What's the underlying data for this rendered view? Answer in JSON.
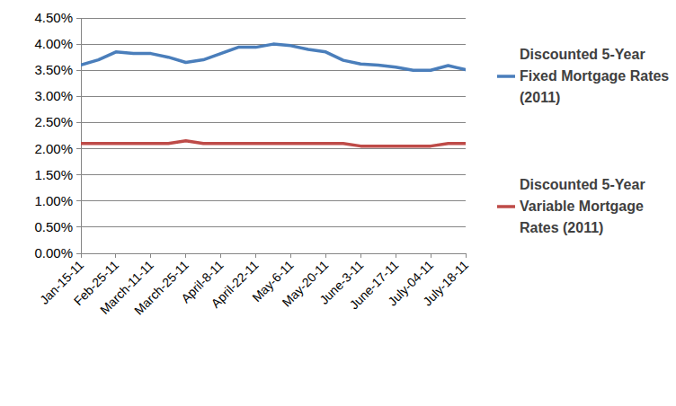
{
  "chart_data": {
    "type": "line",
    "categories": [
      "Jan-15-11",
      null,
      "Feb-25-11",
      null,
      "March-11-11",
      null,
      "March-25-11",
      null,
      "April-8-11",
      null,
      "April-22-11",
      null,
      "May-6-11",
      null,
      "May-20-11",
      null,
      "June-3-11",
      null,
      "June-17-11",
      null,
      "July-04-11",
      null,
      "July-18-11"
    ],
    "series": [
      {
        "name": "Discounted 5-Year Fixed Mortgage Rates (2011)",
        "color": "#4a7ebb",
        "values": [
          3.6,
          3.7,
          3.85,
          3.82,
          3.82,
          3.75,
          3.65,
          3.7,
          3.82,
          3.94,
          3.94,
          4.0,
          3.97,
          3.9,
          3.85,
          3.69,
          3.62,
          3.6,
          3.56,
          3.5,
          3.5,
          3.59,
          3.51
        ]
      },
      {
        "name": "Discounted 5-Year Variable Mortgage Rates (2011)",
        "color": "#be4b48",
        "values": [
          2.1,
          2.1,
          2.1,
          2.1,
          2.1,
          2.1,
          2.15,
          2.1,
          2.1,
          2.1,
          2.1,
          2.1,
          2.1,
          2.1,
          2.1,
          2.1,
          2.05,
          2.05,
          2.05,
          2.05,
          2.05,
          2.1,
          2.1
        ]
      }
    ],
    "ylim": [
      0,
      4.5
    ],
    "yticks": [
      {
        "value": 0,
        "label": "0.00%"
      },
      {
        "value": 0.5,
        "label": "0.50%"
      },
      {
        "value": 1,
        "label": "1.00%"
      },
      {
        "value": 1.5,
        "label": "1.50%"
      },
      {
        "value": 2,
        "label": "2.00%"
      },
      {
        "value": 2.5,
        "label": "2.50%"
      },
      {
        "value": 3,
        "label": "3.00%"
      },
      {
        "value": 3.5,
        "label": "3.50%"
      },
      {
        "value": 4,
        "label": "4.00%"
      },
      {
        "value": 4.5,
        "label": "4.50%"
      }
    ],
    "grid": true,
    "legend": "right"
  }
}
